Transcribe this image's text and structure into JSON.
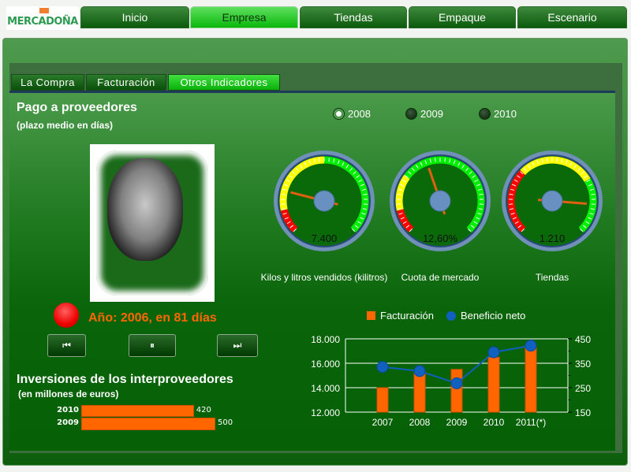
{
  "logo": {
    "text": "MERCADOÑA"
  },
  "nav": [
    {
      "label": "Inicio"
    },
    {
      "label": "Empresa",
      "active": true
    },
    {
      "label": "Tiendas"
    },
    {
      "label": "Empaque"
    },
    {
      "label": "Escenario"
    }
  ],
  "subtabs": [
    {
      "label": "La Compra"
    },
    {
      "label": "Facturación"
    },
    {
      "label": "Otros Indicadores",
      "active": true
    }
  ],
  "pago": {
    "title": "Pago a proveedores",
    "subtitle": "(plazo medio en días)",
    "status": "Año: 2006, en 81 días",
    "status_color": "#ff6600",
    "indicator_color": "#ff0000"
  },
  "years": [
    {
      "label": "2008",
      "selected": true
    },
    {
      "label": "2009"
    },
    {
      "label": "2010"
    }
  ],
  "gauges": [
    {
      "value": "7.400",
      "label": "Kilos y litros vendidos (kilitros)",
      "needle_fraction": 0.22,
      "zones": [
        [
          "#ff0000",
          0,
          0.12
        ],
        [
          "#ffff00",
          0.12,
          0.5
        ],
        [
          "#00ee00",
          0.5,
          1
        ]
      ]
    },
    {
      "value": "12,60%",
      "label": "Cuota de mercado",
      "needle_fraction": 0.43,
      "zones": [
        [
          "#ff0000",
          0,
          0.12
        ],
        [
          "#ffff00",
          0.12,
          0.3
        ],
        [
          "#00ee00",
          0.3,
          1
        ]
      ]
    },
    {
      "value": "1.210",
      "label": "Tiendas",
      "needle_fraction": 0.85,
      "zones": [
        [
          "#ff0000",
          0,
          0.33
        ],
        [
          "#ffff00",
          0.33,
          0.72
        ],
        [
          "#00ee00",
          0.72,
          1
        ]
      ]
    }
  ],
  "controls": {
    "prev": "⏮",
    "pause": "⏸",
    "next": "⏭"
  },
  "inversiones": {
    "title": "Inversiones de los interproveedores",
    "subtitle": "(en millones de euros)",
    "max": 500,
    "rows": [
      {
        "year": "2010",
        "value": 420,
        "label": "420"
      },
      {
        "year": "2009",
        "value": 500,
        "label": "500"
      }
    ]
  },
  "chart_data": {
    "type": "bar+line",
    "categories": [
      "2007",
      "2008",
      "2009",
      "2010",
      "2011(*)"
    ],
    "series": [
      {
        "name": "Facturación",
        "type": "bar",
        "axis": "left",
        "color": "#ff6600",
        "values": [
          14000,
          15300,
          15500,
          16500,
          17300
        ]
      },
      {
        "name": "Beneficio neto",
        "type": "line",
        "axis": "right",
        "color": "#1060c0",
        "values": [
          335,
          318,
          268,
          395,
          422
        ]
      }
    ],
    "ylim_left": [
      12000,
      18000
    ],
    "yticks_left": [
      "12.000",
      "14.000",
      "16.000",
      "18.000"
    ],
    "ylim_right": [
      150,
      450
    ],
    "yticks_right": [
      "150",
      "250",
      "350",
      "450"
    ],
    "grid": true,
    "legend": "top"
  }
}
